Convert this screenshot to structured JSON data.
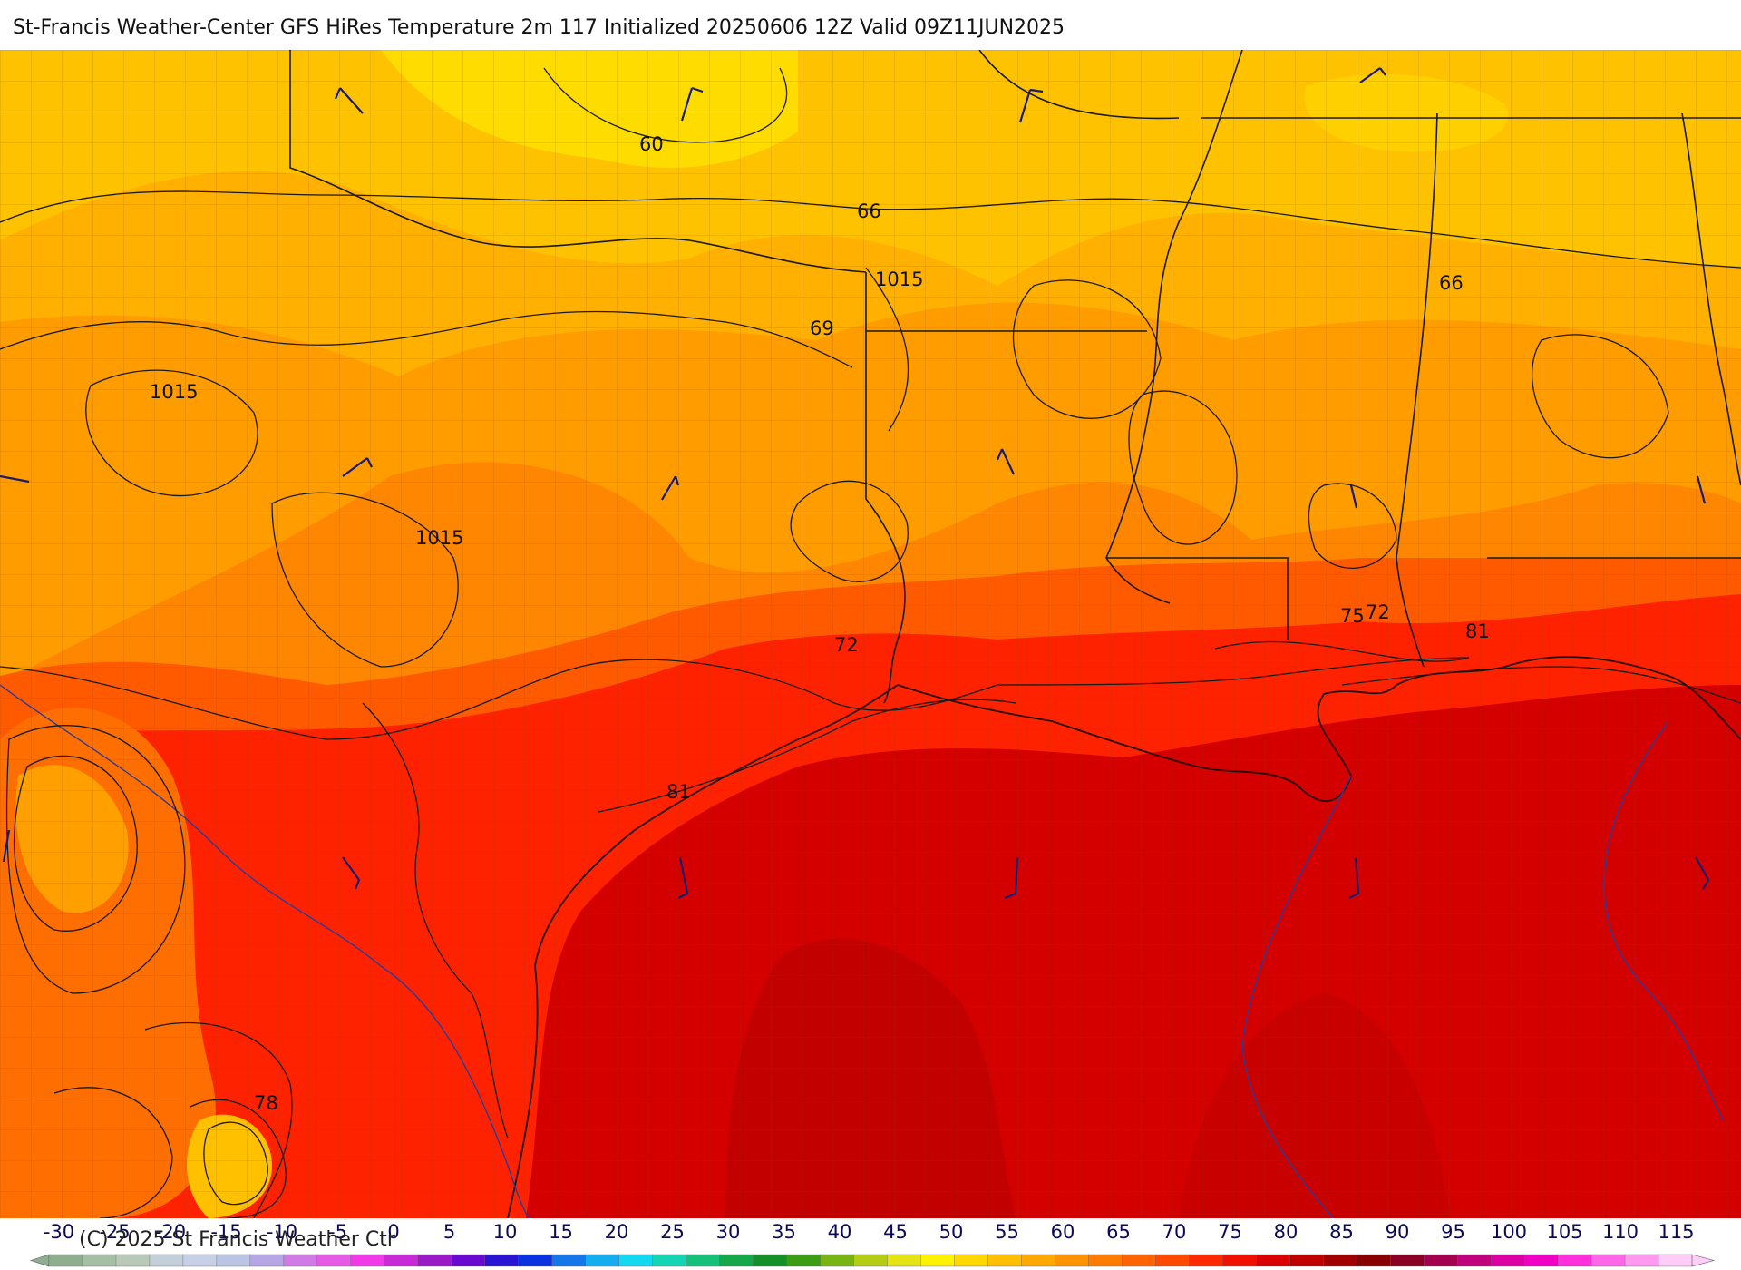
{
  "title": "St-Francis Weather-Center GFS HiRes Temperature 2m  117 Initialized 20250606 12Z Valid 09Z11JUN2025",
  "copyright": "(C) 2025 St Francis Weather Ctr",
  "contour_labels": [
    "60",
    "66",
    "1015",
    "69",
    "1015",
    "1015",
    "66",
    "72",
    "75",
    "72",
    "81",
    "81",
    "78"
  ],
  "colorbar": {
    "ticks": [
      "-30",
      "-25",
      "-20",
      "-15",
      "-10",
      "-5",
      "0",
      "5",
      "10",
      "15",
      "20",
      "25",
      "30",
      "35",
      "40",
      "45",
      "50",
      "55",
      "60",
      "65",
      "70",
      "75",
      "80",
      "85",
      "90",
      "95",
      "100",
      "105",
      "110",
      "115"
    ],
    "colors": [
      "#8fae8f",
      "#a6bea6",
      "#b9c9b9",
      "#c3cfd9",
      "#c8d0e8",
      "#bcc4e4",
      "#b6a6e6",
      "#d07ae6",
      "#e65ae6",
      "#f03ae8",
      "#c82ad8",
      "#9a1ac8",
      "#6a0ad0",
      "#2a14d4",
      "#0a32e0",
      "#1476e8",
      "#14aef0",
      "#14d8f0",
      "#14d4b4",
      "#14c07a",
      "#14a84a",
      "#149028",
      "#3c9c14",
      "#78b414",
      "#b4cc14",
      "#e4e414",
      "#fff200",
      "#ffd800",
      "#ffbe00",
      "#ffa800",
      "#ff9200",
      "#ff7c00",
      "#ff6400",
      "#ff4a00",
      "#ff2800",
      "#f01000",
      "#d80000",
      "#c00000",
      "#a00000",
      "#880000",
      "#8a0024",
      "#a40050",
      "#c0007c",
      "#dc00a4",
      "#f000c4",
      "#ff30dc",
      "#ff66e8",
      "#ff99f0",
      "#ffcdf8"
    ]
  },
  "colors": {
    "yellow": "#ffdc00",
    "light_orange": "#ffc000",
    "orange": "#ffa400",
    "dark_orange": "#ff8200",
    "red_orange": "#ff5400",
    "red": "#ff1e00",
    "deep_red": "#d40000"
  }
}
